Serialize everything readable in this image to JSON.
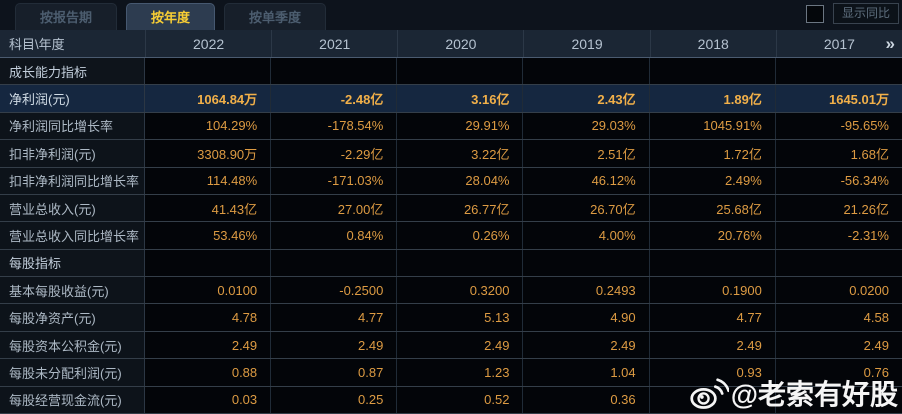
{
  "tabs": [
    {
      "label": "按报告期",
      "active": false
    },
    {
      "label": "按年度",
      "active": true
    },
    {
      "label": "按单季度",
      "active": false
    }
  ],
  "controls": {
    "show_yoy_label": "显示同比",
    "checkbox_checked": false
  },
  "colors": {
    "accent_gold": "#f7cd35",
    "value_orange": "#dd9b43",
    "highlight_row_bg": "#152740",
    "header_bg": "#1b2634",
    "watermark_white": "#ffffff"
  },
  "table": {
    "corner_label": "科目\\年度",
    "years": [
      "2022",
      "2021",
      "2020",
      "2019",
      "2018",
      "2017"
    ],
    "more_columns_icon": "»",
    "rows": [
      {
        "type": "section",
        "highlight": false,
        "label": "成长能力指标",
        "values": [
          "",
          "",
          "",
          "",
          "",
          ""
        ]
      },
      {
        "type": "data",
        "highlight": true,
        "label": "净利润(元)",
        "values": [
          "1064.84万",
          "-2.48亿",
          "3.16亿",
          "2.43亿",
          "1.89亿",
          "1645.01万"
        ]
      },
      {
        "type": "data",
        "highlight": false,
        "label": "净利润同比增长率",
        "values": [
          "104.29%",
          "-178.54%",
          "29.91%",
          "29.03%",
          "1045.91%",
          "-95.65%"
        ]
      },
      {
        "type": "data",
        "highlight": false,
        "label": "扣非净利润(元)",
        "values": [
          "3308.90万",
          "-2.29亿",
          "3.22亿",
          "2.51亿",
          "1.72亿",
          "1.68亿"
        ]
      },
      {
        "type": "data",
        "highlight": false,
        "label": "扣非净利润同比增长率",
        "values": [
          "114.48%",
          "-171.03%",
          "28.04%",
          "46.12%",
          "2.49%",
          "-56.34%"
        ]
      },
      {
        "type": "data",
        "highlight": false,
        "label": "营业总收入(元)",
        "values": [
          "41.43亿",
          "27.00亿",
          "26.77亿",
          "26.70亿",
          "25.68亿",
          "21.26亿"
        ]
      },
      {
        "type": "data",
        "highlight": false,
        "label": "营业总收入同比增长率",
        "values": [
          "53.46%",
          "0.84%",
          "0.26%",
          "4.00%",
          "20.76%",
          "-2.31%"
        ]
      },
      {
        "type": "section",
        "highlight": false,
        "label": "每股指标",
        "values": [
          "",
          "",
          "",
          "",
          "",
          ""
        ]
      },
      {
        "type": "data",
        "highlight": false,
        "label": "基本每股收益(元)",
        "values": [
          "0.0100",
          "-0.2500",
          "0.3200",
          "0.2493",
          "0.1900",
          "0.0200"
        ]
      },
      {
        "type": "data",
        "highlight": false,
        "label": "每股净资产(元)",
        "values": [
          "4.78",
          "4.77",
          "5.13",
          "4.90",
          "4.77",
          "4.58"
        ]
      },
      {
        "type": "data",
        "highlight": false,
        "label": "每股资本公积金(元)",
        "values": [
          "2.49",
          "2.49",
          "2.49",
          "2.49",
          "2.49",
          "2.49"
        ]
      },
      {
        "type": "data",
        "highlight": false,
        "label": "每股未分配利润(元)",
        "values": [
          "0.88",
          "0.87",
          "1.23",
          "1.04",
          "0.93",
          "0.76"
        ]
      },
      {
        "type": "data",
        "highlight": false,
        "label": "每股经营现金流(元)",
        "values": [
          "0.03",
          "0.25",
          "0.52",
          "0.36",
          "",
          ""
        ]
      }
    ]
  },
  "watermark": {
    "text": "@老索有好股",
    "icon": "weibo-icon"
  }
}
